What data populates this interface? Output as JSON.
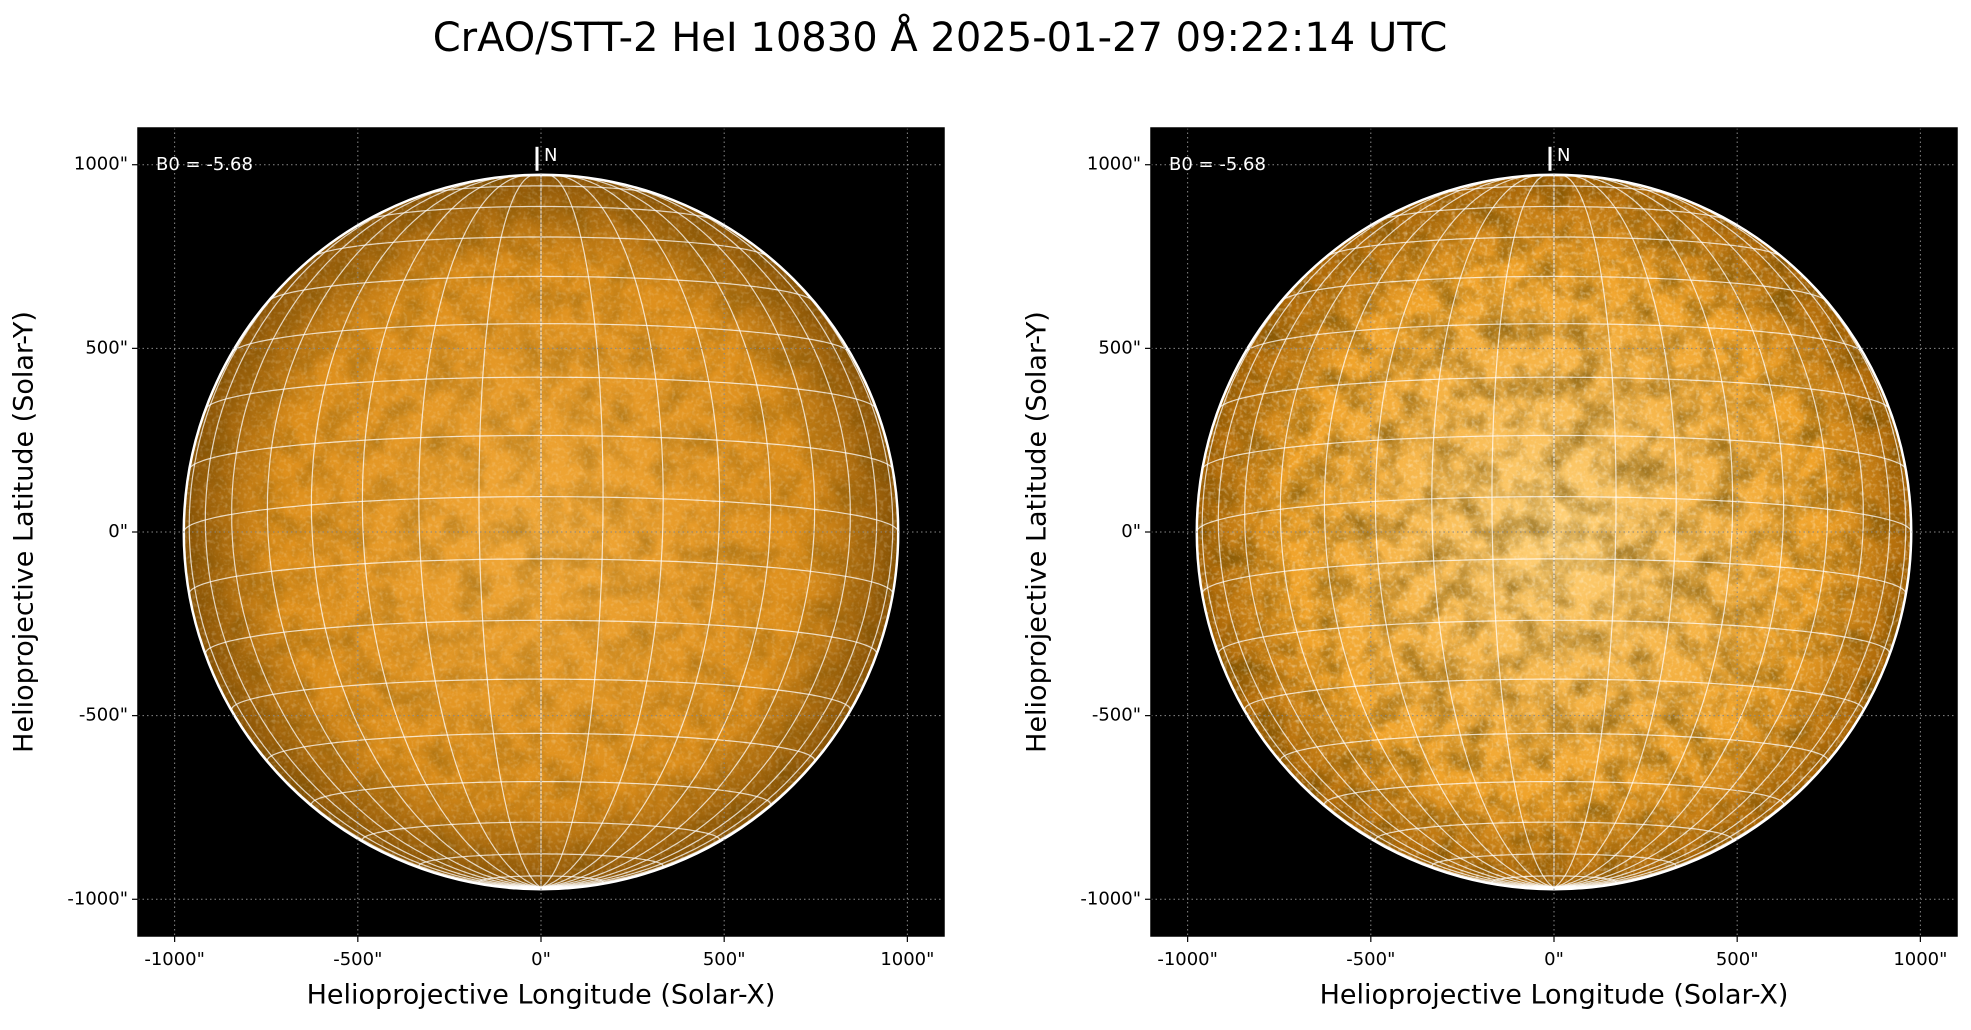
{
  "title": "CrAO/STT-2 HeI 10830 Å 2025-01-27 09:22:14 UTC",
  "chart_data": [
    {
      "type": "image",
      "xlabel": "Helioprojective Longitude (Solar-X)",
      "ylabel": "Helioprojective Latitude (Solar-Y)",
      "xlim": [
        -1100,
        1100
      ],
      "ylim": [
        -1100,
        1100
      ],
      "xticks": [
        {
          "value": -1000,
          "label": "-1000\""
        },
        {
          "value": -500,
          "label": "-500\""
        },
        {
          "value": 0,
          "label": "0\""
        },
        {
          "value": 500,
          "label": "500\""
        },
        {
          "value": 1000,
          "label": "1000\""
        }
      ],
      "yticks": [
        {
          "value": -1000,
          "label": "-1000\""
        },
        {
          "value": -500,
          "label": "-500\""
        },
        {
          "value": 0,
          "label": "0\""
        },
        {
          "value": 500,
          "label": "500\""
        },
        {
          "value": 1000,
          "label": "1000\""
        }
      ],
      "b0": {
        "value": -5.68,
        "label": "B0 = -5.68"
      },
      "north": "N",
      "disk_radius": 975,
      "disk_colors": [
        "#f3aa3a",
        "#dd8f1c",
        "#8a5406"
      ],
      "texture_opacity": 0.35
    },
    {
      "type": "image",
      "xlabel": "Helioprojective Longitude (Solar-X)",
      "ylabel": "Helioprojective Latitude (Solar-Y)",
      "xlim": [
        -1100,
        1100
      ],
      "ylim": [
        -1100,
        1100
      ],
      "xticks": [
        {
          "value": -1000,
          "label": "-1000\""
        },
        {
          "value": -500,
          "label": "-500\""
        },
        {
          "value": 0,
          "label": "0\""
        },
        {
          "value": 500,
          "label": "500\""
        },
        {
          "value": 1000,
          "label": "1000\""
        }
      ],
      "yticks": [
        {
          "value": -1000,
          "label": "-1000\""
        },
        {
          "value": -500,
          "label": "-500\""
        },
        {
          "value": 0,
          "label": "0\""
        },
        {
          "value": 500,
          "label": "500\""
        },
        {
          "value": 1000,
          "label": "1000\""
        }
      ],
      "b0": {
        "value": -5.68,
        "label": "B0 = -5.68"
      },
      "north": "N",
      "disk_radius": 975,
      "disk_colors": [
        "#ffd27a",
        "#f0a32a",
        "#a86405"
      ],
      "texture_opacity": 0.6
    }
  ]
}
